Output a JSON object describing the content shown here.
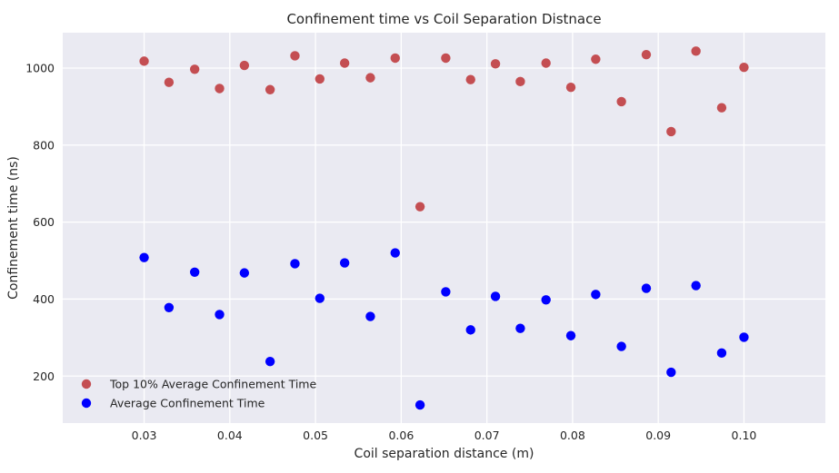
{
  "chart_data": {
    "type": "scatter",
    "title": "Confinement time vs Coil Separation Distnace",
    "xlabel": "Coil separation distance (m)",
    "ylabel": "Confinement time (ns)",
    "xlim": [
      0.0205,
      0.1095
    ],
    "ylim": [
      78,
      1092
    ],
    "xticks": [
      0.03,
      0.04,
      0.05,
      0.06,
      0.07,
      0.08,
      0.09,
      0.1
    ],
    "xtick_labels": [
      "0.03",
      "0.04",
      "0.05",
      "0.06",
      "0.07",
      "0.08",
      "0.09",
      "0.10"
    ],
    "yticks": [
      200,
      400,
      600,
      800,
      1000
    ],
    "ytick_labels": [
      "200",
      "400",
      "600",
      "800",
      "1000"
    ],
    "grid": true,
    "legend_position": "lower-left",
    "x": [
      0.03,
      0.0329,
      0.0359,
      0.0388,
      0.0417,
      0.0447,
      0.0476,
      0.0505,
      0.0534,
      0.0564,
      0.0593,
      0.0622,
      0.0652,
      0.0681,
      0.071,
      0.0739,
      0.0769,
      0.0798,
      0.0827,
      0.0857,
      0.0886,
      0.0915,
      0.0944,
      0.0974,
      0.1
    ],
    "series": [
      {
        "name": "Top 10% Average Confinement Time",
        "color": "#c44e52",
        "values": [
          1018,
          963,
          997,
          947,
          1007,
          944,
          1032,
          972,
          1013,
          975,
          1026,
          640,
          1026,
          970,
          1011,
          965,
          1013,
          950,
          1023,
          913,
          1035,
          835,
          1044,
          897,
          1002
        ]
      },
      {
        "name": "Average Confinement Time",
        "color": "#0000ff",
        "values": [
          508,
          378,
          470,
          360,
          468,
          238,
          492,
          402,
          494,
          355,
          520,
          125,
          419,
          320,
          407,
          324,
          398,
          305,
          412,
          277,
          428,
          210,
          435,
          260,
          301
        ]
      }
    ]
  },
  "colors": {
    "plot_background": "#eaeaf2",
    "grid": "#ffffff",
    "text": "#262626"
  }
}
